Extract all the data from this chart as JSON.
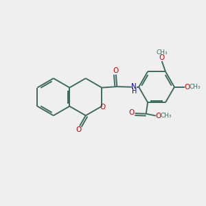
{
  "bg_color": "#efefef",
  "bond_color": "#3d6b5e",
  "oxygen_color": "#cc0000",
  "nitrogen_color": "#0000bb",
  "lw": 1.4,
  "figsize": [
    3.0,
    3.0
  ],
  "dpi": 100,
  "xlim": [
    0,
    10
  ],
  "ylim": [
    0,
    10
  ]
}
